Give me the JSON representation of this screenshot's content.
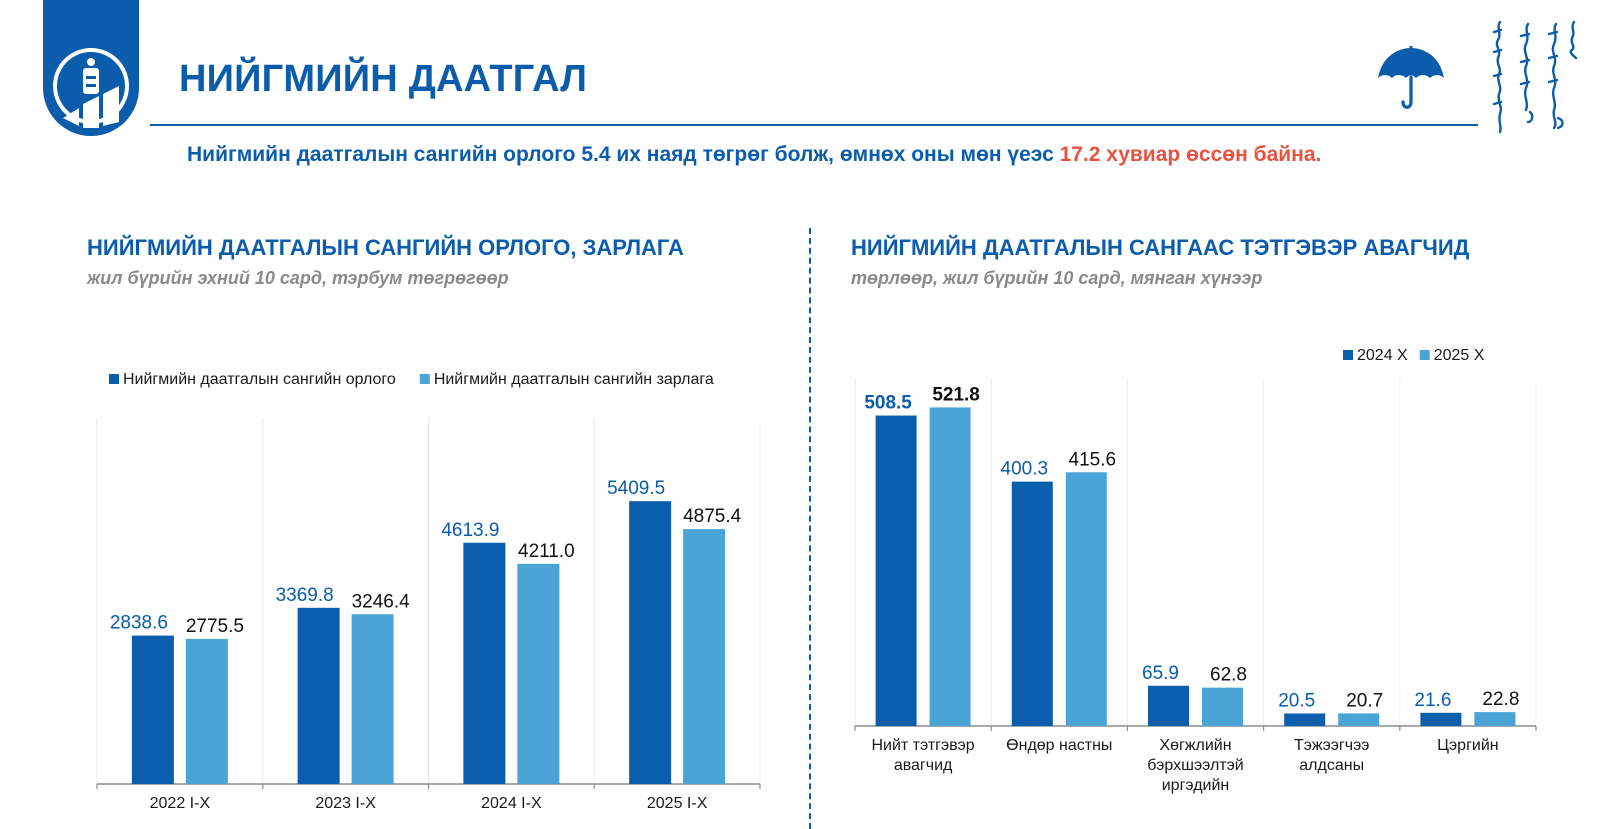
{
  "header": {
    "title": "НИЙГМИЙН ДААТГАЛ",
    "summary_main": "Нийгмийн даатгалын сангийн орлого 5.4 их наяд төгрөг болж, өмнөх оны мөн үеэс ",
    "summary_highlight": "17.2 хувиар өссөн байна."
  },
  "colors": {
    "brand": "#0b5cab",
    "series_dark": "#0a5eab",
    "series_light": "#4aa5d6",
    "highlight": "#e8533f",
    "subtitle": "#8a8a8a"
  },
  "icons": [
    "state-emblem-icon",
    "umbrella-icon",
    "mongol-script-icon"
  ],
  "chart_data": [
    {
      "type": "bar",
      "title": "НИЙГМИЙН ДААТГАЛЫН САНГИЙН ОРЛОГО, ЗАРЛАГА",
      "subtitle": "жил бүрийн эхний 10 сард, тэрбум төгрөгөөр",
      "categories": [
        "2022 I-X",
        "2023 I-X",
        "2024 I-X",
        "2025 I-X"
      ],
      "series": [
        {
          "name": "Нийгмийн даатгалын сангийн орлого",
          "values": [
            2838.6,
            3369.8,
            4613.9,
            5409.5
          ],
          "labels": [
            "2838.6",
            "3369.8",
            "4613.9",
            "5409.5"
          ]
        },
        {
          "name": "Нийгмийн даатгалын сангийн зарлага",
          "values": [
            2775.5,
            3246.4,
            4211.0,
            4875.4
          ],
          "labels": [
            "2775.5",
            "3246.4",
            "4211.0",
            "4875.4"
          ]
        }
      ],
      "ylim": [
        0,
        7000
      ],
      "legend_position": "top",
      "grid": true
    },
    {
      "type": "bar",
      "title": "НИЙГМИЙН ДААТГАЛЫН САНГААС ТЭТГЭВЭР АВАГЧИД",
      "subtitle": "төрлөөр, жил бүрийн 10 сард, мянган хүнээр",
      "categories": [
        [
          "Нийт тэтгэвэр",
          "авагчид"
        ],
        [
          "Өндөр настны"
        ],
        [
          "Хөгжлийн",
          "бэрхшээлтэй",
          "иргэдийн"
        ],
        [
          "Тэжээгчээ",
          "алдсаны"
        ],
        [
          "Цэргийн"
        ]
      ],
      "series": [
        {
          "name": "2024 X",
          "values": [
            508.5,
            400.3,
            65.9,
            20.5,
            21.6
          ],
          "labels": [
            "508.5",
            "400.3",
            "65.9",
            "20.5",
            "21.6"
          ]
        },
        {
          "name": "2025 X",
          "values": [
            521.8,
            415.6,
            62.8,
            20.7,
            22.8
          ],
          "labels": [
            "521.8",
            "415.6",
            "62.8",
            "20.7",
            "22.8"
          ]
        }
      ],
      "ylim": [
        0,
        570
      ],
      "legend_position": "top-right",
      "grid": true
    }
  ]
}
